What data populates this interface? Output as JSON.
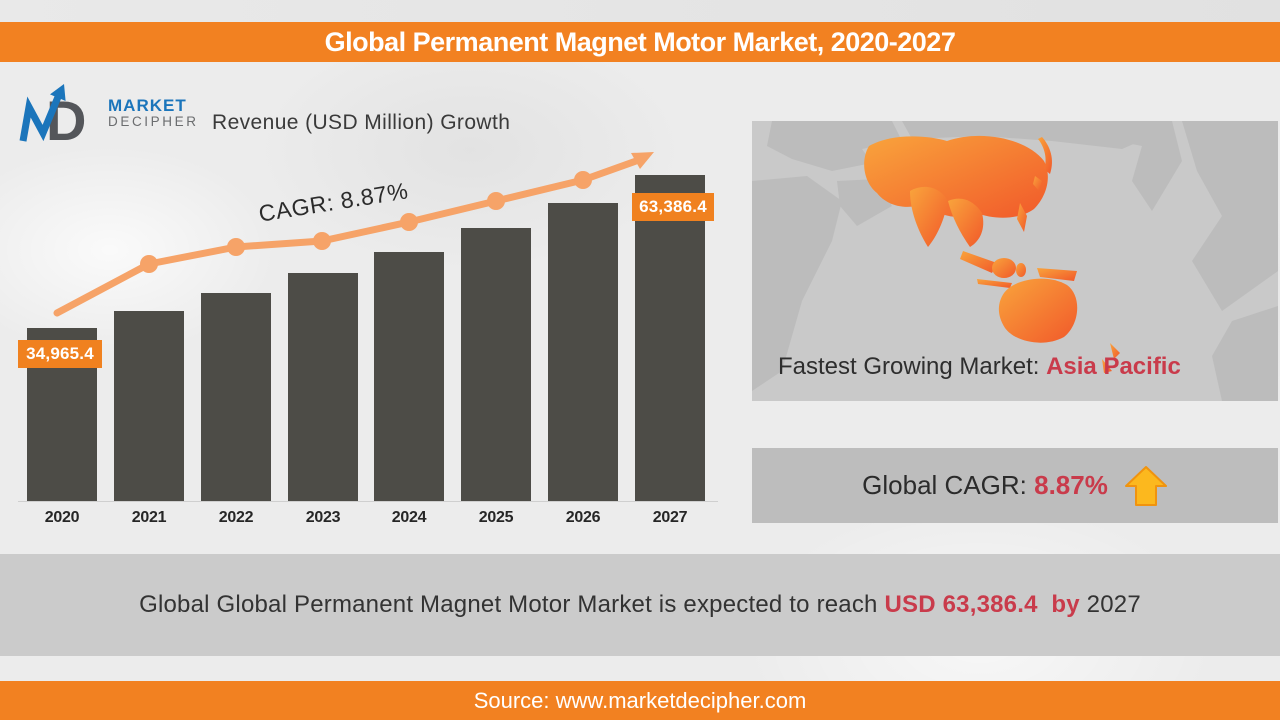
{
  "header": {
    "title": "Global Permanent Magnet Motor Market, 2020-2027"
  },
  "logo": {
    "monogram_d": "D",
    "name_top": "MARKET",
    "name_bottom": "DECIPHER"
  },
  "chart_data": {
    "type": "bar",
    "title": "Revenue (USD Million) Growth",
    "categories": [
      "2020",
      "2021",
      "2022",
      "2023",
      "2024",
      "2025",
      "2026",
      "2027"
    ],
    "values": [
      34965.4,
      38066.9,
      41443.4,
      45119.5,
      49121.6,
      53478.7,
      58221.8,
      63386.4
    ],
    "unit": "USD Million",
    "xlabel": "",
    "ylabel": "",
    "ylim": [
      0,
      70000
    ],
    "grid": false,
    "legend": false,
    "annotation": "CAGR: 8.87%",
    "data_labels": {
      "first": "34,965.4",
      "last": "63,386.4"
    },
    "trendline": {
      "shape": "line-with-markers-and-arrow",
      "color": "#F6A368",
      "direction": "up"
    }
  },
  "map_panel": {
    "caption_prefix": "Fastest Growing Market: ",
    "caption_highlight": "Asia Pacific",
    "highlighted_region": "Asia Pacific"
  },
  "cagr_panel": {
    "label": "Global CAGR: ",
    "value": "8.87%",
    "icon": "up-arrow"
  },
  "summary": {
    "prefix": "Global Global Permanent Magnet Motor Market is expected to reach ",
    "highlight": "USD 63,386.4  by ",
    "suffix": "2027"
  },
  "footer": {
    "source": "Source: www.marketdecipher.com"
  },
  "colors": {
    "accent_orange": "#F28121",
    "bar_gray": "#4D4C47",
    "trend_orange": "#F6A368",
    "highlight_red": "#C93B4B",
    "arrow_yellow": "#FCB81E",
    "logo_blue": "#1B75BB",
    "map_panel_gray": "#C9C9C9"
  }
}
